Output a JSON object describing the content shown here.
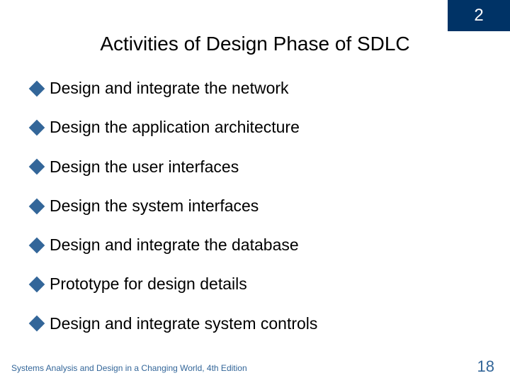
{
  "colors": {
    "chapter_box_bg": "#003366",
    "chapter_box_text": "#ffffff",
    "title_text": "#000000",
    "bullet_icon": "#336699",
    "bullet_text": "#000000",
    "footer_text": "#336699",
    "slide_number": "#336699",
    "background": "#ffffff"
  },
  "chapter_number": "2",
  "title": "Activities of Design Phase of SDLC",
  "bullets": [
    "Design and integrate the network",
    "Design the application architecture",
    "Design the user interfaces",
    "Design the system interfaces",
    "Design and integrate the database",
    "Prototype for design details",
    "Design and integrate system controls"
  ],
  "footer_text": "Systems Analysis and Design in a Changing World, 4th Edition",
  "slide_number": "18"
}
